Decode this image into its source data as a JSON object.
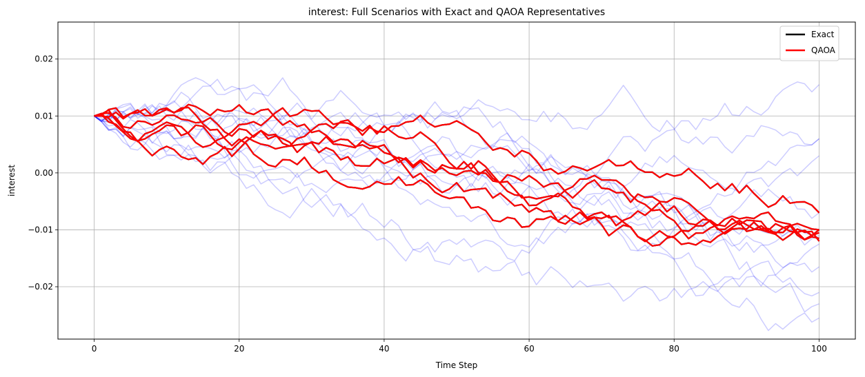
{
  "chart_data": {
    "type": "line",
    "title": "interest: Full Scenarios with Exact and QAOA Representatives",
    "xlabel": "Time Step",
    "ylabel": "interest",
    "xlim": [
      -5,
      105
    ],
    "ylim": [
      -0.0292,
      0.0265
    ],
    "xticks": [
      0,
      20,
      40,
      60,
      80,
      100
    ],
    "xtick_labels": [
      "0",
      "20",
      "40",
      "60",
      "80",
      "100"
    ],
    "yticks": [
      -0.02,
      -0.01,
      0.0,
      0.01,
      0.02
    ],
    "ytick_labels": [
      "−0.02",
      "−0.01",
      "0.00",
      "0.01",
      "0.02"
    ],
    "grid": true,
    "legend_position": "top-right",
    "legend": [
      {
        "label": "Exact",
        "color": "#000000"
      },
      {
        "label": "QAOA",
        "color": "#e8000b"
      }
    ],
    "colors": {
      "scenario": "#0000ff",
      "scenario_opacity": 0.2,
      "exact": "#000000",
      "qaoa": "#ff0000"
    },
    "start_value": 0.01,
    "x_end": 100,
    "scenario_endpoints": [
      0.0155,
      0.006,
      0.003,
      -0.007,
      -0.01,
      -0.0125,
      -0.0165,
      -0.021,
      -0.023,
      -0.0255,
      0.006,
      -0.011
    ],
    "qaoa_endpoints": [
      -0.01,
      -0.0115,
      -0.012,
      -0.01,
      -0.007,
      -0.0105
    ],
    "exact_endpoints": [
      -0.01,
      -0.0115,
      -0.012,
      -0.01,
      -0.007,
      -0.0105
    ]
  }
}
